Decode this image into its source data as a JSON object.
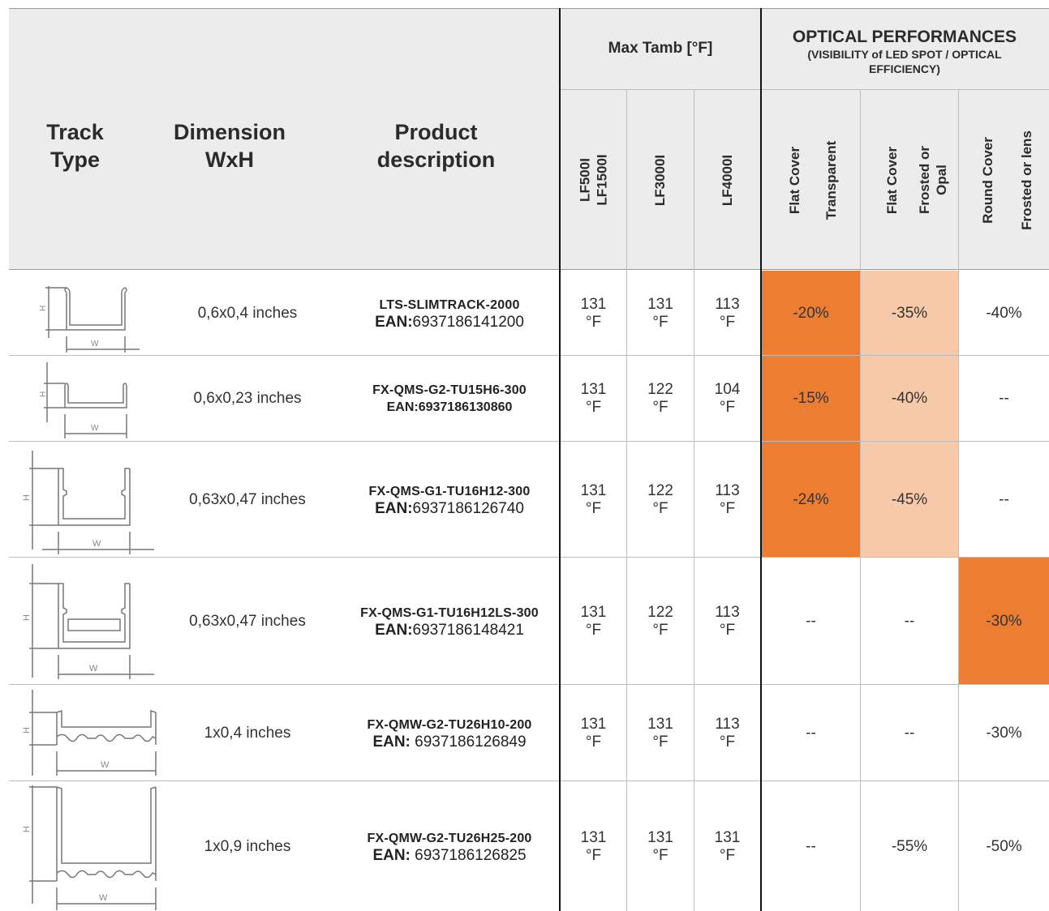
{
  "header": {
    "track_type": "Track\nType",
    "dimension": "Dimension\nWxH",
    "product_description": "Product\ndescription",
    "max_tamb": "Max Tamb [°F]",
    "optical_title": "OPTICAL PERFORMANCES",
    "optical_subtitle": "(VISIBILITY of LED SPOT / OPTICAL EFFICIENCY)",
    "temp_cols": [
      "LF500I\nLF1500I",
      "LF3000I",
      "LF4000I"
    ],
    "optical_cols": [
      {
        "a": "Flat Cover",
        "b": "Transparent"
      },
      {
        "a": "Flat Cover",
        "b": "Frosted or\nOpal"
      },
      {
        "a": "Round Cover",
        "b": "Frosted or lens"
      }
    ]
  },
  "rows": [
    {
      "dimension": "0,6x0,4 inches",
      "code": "LTS-SLIMTRACK-2000",
      "ean_label": "EAN:",
      "ean_value": "6937186141200",
      "ean_all_bold": false,
      "temps": [
        "131\n°F",
        "131\n°F",
        "113\n°F"
      ],
      "flat_transparent": "-20%",
      "flat_frosted": "-35%",
      "round": "-40%"
    },
    {
      "dimension": "0,6x0,23 inches",
      "code": "FX-QMS-G2-TU15H6-300",
      "ean_label": "EAN:",
      "ean_value": "6937186130860",
      "ean_all_bold": true,
      "temps": [
        "131\n°F",
        "122\n°F",
        "104\n°F"
      ],
      "flat_transparent": "-15%",
      "flat_frosted": "-40%",
      "round": "--"
    },
    {
      "dimension": "0,63x0,47 inches",
      "code": "FX-QMS-G1-TU16H12-300",
      "ean_label": "EAN:",
      "ean_value": "6937186126740",
      "ean_all_bold": false,
      "temps": [
        "131\n°F",
        "122\n°F",
        "113\n°F"
      ],
      "flat_transparent": "-24%",
      "flat_frosted": "-45%",
      "round": "--"
    },
    {
      "dimension": "0,63x0,47 inches",
      "code": "FX-QMS-G1-TU16H12LS-300",
      "ean_label": "EAN:",
      "ean_value": "6937186148421",
      "ean_all_bold": false,
      "temps": [
        "131\n°F",
        "122\n°F",
        "113\n°F"
      ],
      "flat_transparent": "--",
      "flat_frosted": "--",
      "round": "-30%"
    },
    {
      "dimension": "1x0,4 inches",
      "code": "FX-QMW-G2-TU26H10-200",
      "ean_label": "EAN:",
      "ean_value": " 6937186126849",
      "ean_all_bold": false,
      "temps": [
        "131\n°F",
        "131\n°F",
        "113\n°F"
      ],
      "flat_transparent": "--",
      "flat_frosted": "--",
      "round": "-30%"
    },
    {
      "dimension": "1x0,9 inches",
      "code": "FX-QMW-G2-TU26H25-200",
      "ean_label": "EAN:",
      "ean_value": " 6937186126825",
      "ean_all_bold": false,
      "temps": [
        "131\n°F",
        "131\n°F",
        "131\n°F"
      ],
      "flat_transparent": "--",
      "flat_frosted": "-55%",
      "round": "-50%"
    }
  ],
  "profile_labels": {
    "height": "H",
    "width": "W"
  },
  "colors": {
    "header_bg": "#ececec",
    "highlight_strong": "#ed7d31",
    "highlight_light": "#f6caa9"
  }
}
